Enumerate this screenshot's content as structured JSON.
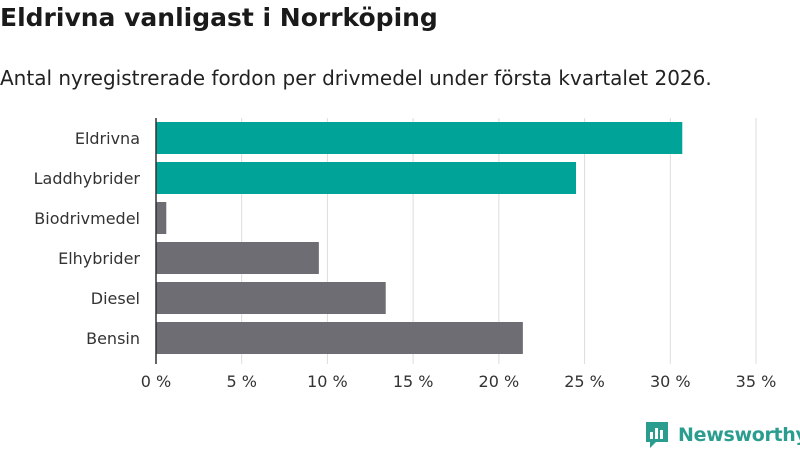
{
  "header": {
    "title": "Eldrivna vanligast i Norrköping",
    "subtitle": "Antal nyregistrerade fordon per drivmedel under första kvartalet 2026."
  },
  "brand": {
    "name": "Newsworthy"
  },
  "colors": {
    "highlight": "#00a398",
    "muted": "#6d6d73",
    "grid": "#dddddd",
    "brand": "#2a9d8f"
  },
  "chart_data": {
    "type": "bar",
    "orientation": "horizontal",
    "title": "Eldrivna vanligast i Norrköping",
    "subtitle": "Antal nyregistrerade fordon per drivmedel under första kvartalet 2026.",
    "xlabel": "",
    "ylabel": "",
    "xlim": [
      0,
      35
    ],
    "grid": true,
    "categories": [
      "Eldrivna",
      "Laddhybrider",
      "Biodrivmedel",
      "Elhybrider",
      "Diesel",
      "Bensin"
    ],
    "values": [
      30.7,
      24.5,
      0.6,
      9.5,
      13.4,
      21.4
    ],
    "highlighted": [
      true,
      true,
      false,
      false,
      false,
      false
    ],
    "ticks": [
      0,
      5,
      10,
      15,
      20,
      25,
      30,
      35
    ],
    "tick_labels": [
      "0 %",
      "5 %",
      "10 %",
      "15 %",
      "20 %",
      "25 %",
      "30 %",
      "35 %"
    ]
  }
}
